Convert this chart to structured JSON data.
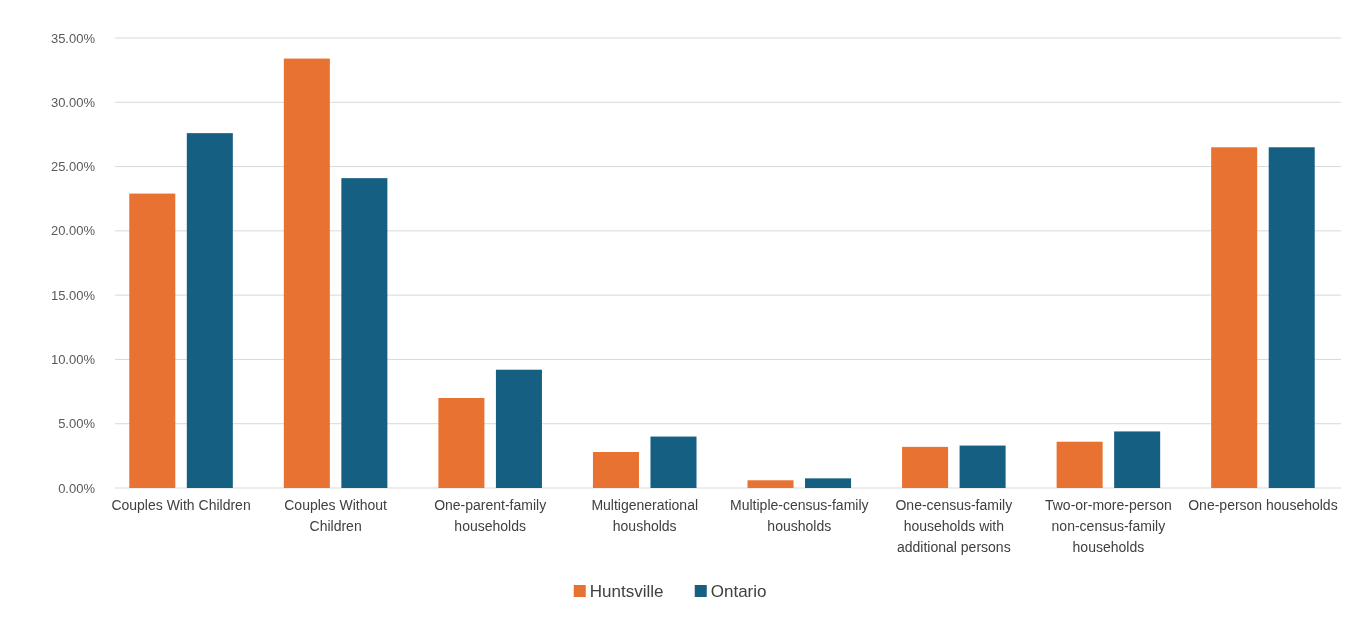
{
  "chart_data": {
    "type": "bar",
    "categories": [
      "Couples With Children",
      "Couples Without Children",
      "One-parent-family households",
      "Multigenerational housholds",
      "Multiple-census-family housholds",
      "One-census-family households with additional persons",
      "Two-or-more-person non-census-family households",
      "One-person households"
    ],
    "series": [
      {
        "name": "Huntsville",
        "color": "#e87231",
        "values": [
          22.9,
          33.4,
          7.0,
          2.8,
          0.6,
          3.2,
          3.6,
          26.5
        ]
      },
      {
        "name": "Ontario",
        "color": "#155f82",
        "values": [
          27.6,
          24.1,
          9.2,
          4.0,
          0.75,
          3.3,
          4.4,
          26.5
        ]
      }
    ],
    "ylim": [
      0,
      35
    ],
    "yticks": [
      {
        "value": 0,
        "label": "0.00%"
      },
      {
        "value": 5,
        "label": "5.00%"
      },
      {
        "value": 10,
        "label": "10.00%"
      },
      {
        "value": 15,
        "label": "15.00%"
      },
      {
        "value": 20,
        "label": "20.00%"
      },
      {
        "value": 25,
        "label": "25.00%"
      },
      {
        "value": 30,
        "label": "30.00%"
      },
      {
        "value": 35,
        "label": "35.00%"
      }
    ],
    "grid": "y",
    "legend": "bottom"
  }
}
